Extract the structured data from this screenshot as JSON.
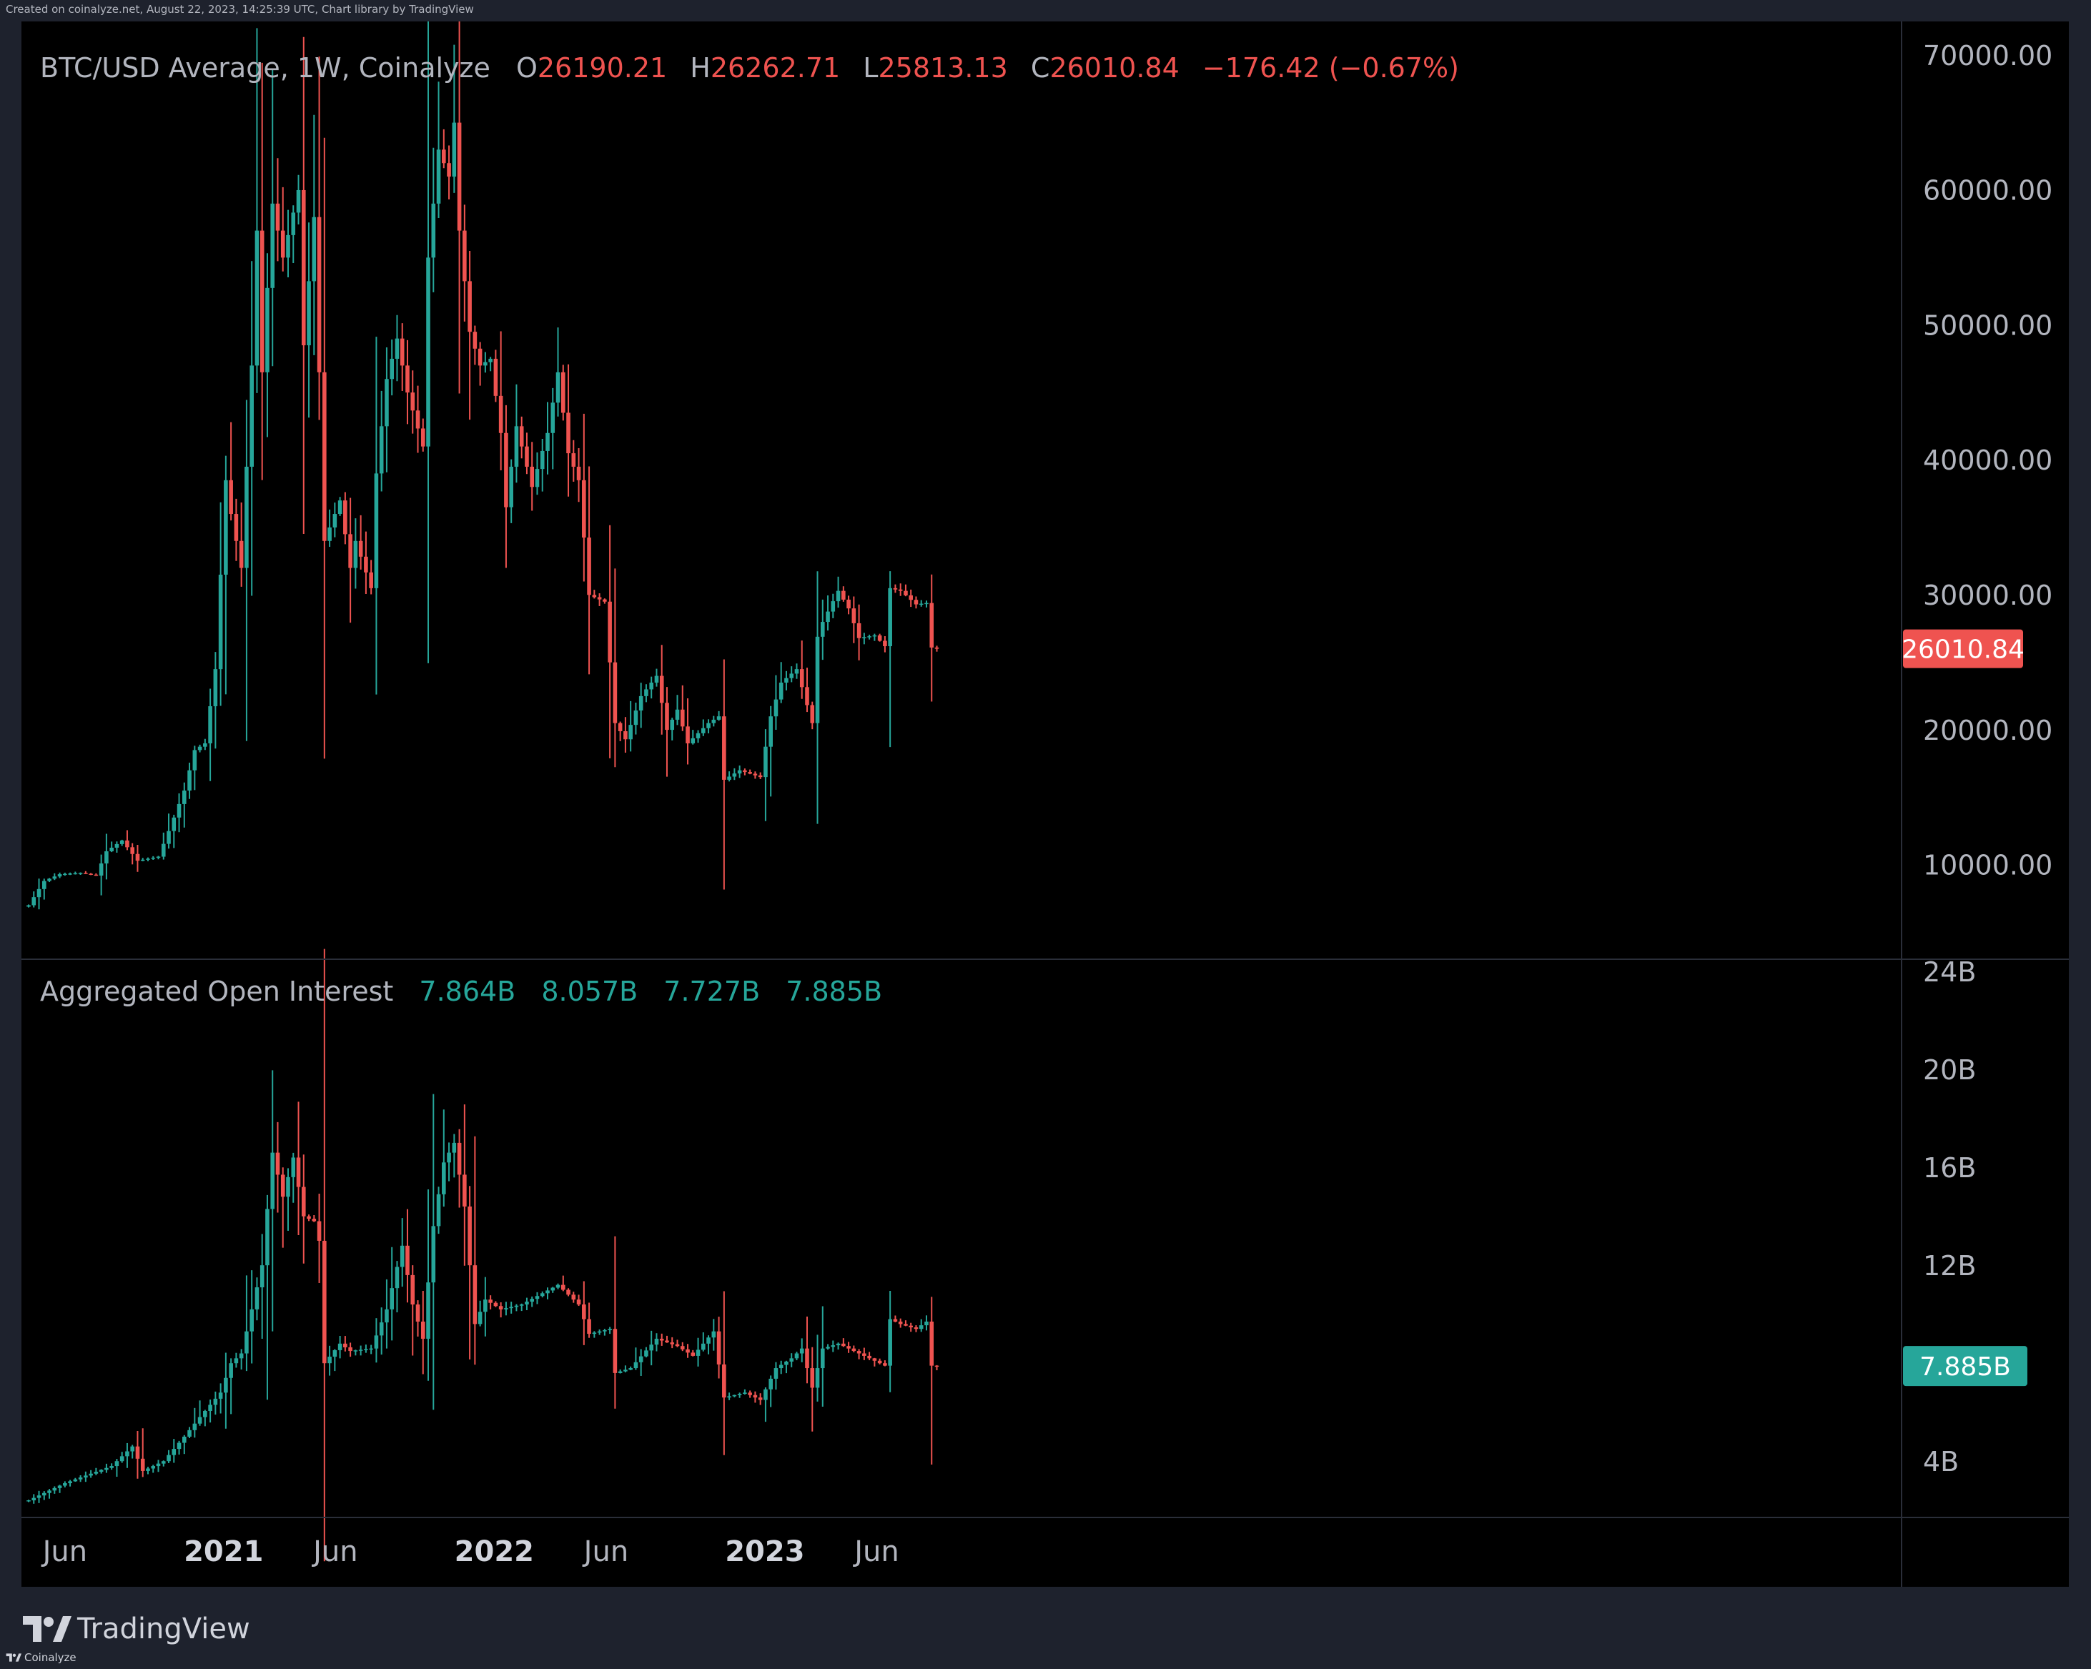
{
  "header": {
    "created_note": "Created on coinalyze.net, August 22, 2023, 14:25:39 UTC, Chart library by TradingView"
  },
  "footer": {
    "brand": "TradingView",
    "source": "Coinalyze"
  },
  "colors": {
    "background": "#000000",
    "up": "#26a69a",
    "down": "#ef5350",
    "text": "#b2b5be",
    "divider": "#2a2e39"
  },
  "chart_data": [
    {
      "type": "candlestick",
      "id": "price",
      "legend": {
        "title": "BTC/USD Average, 1W, Coinalyze",
        "open_label": "O",
        "open": "26190.21",
        "high_label": "H",
        "high": "26262.71",
        "low_label": "L",
        "low": "25813.13",
        "close_label": "C",
        "close": "26010.84",
        "change": "−176.42 (−0.67%)"
      },
      "last_value_label": "26010.84",
      "y_ticks": [
        "70000.00",
        "60000.00",
        "50000.00",
        "40000.00",
        "30000.00",
        "20000.00",
        "10000.00"
      ],
      "y_tick_values": [
        70000,
        60000,
        50000,
        40000,
        30000,
        20000,
        10000
      ],
      "ylim": [
        3000,
        72500
      ],
      "x_start_week": "2020-04-13",
      "close_anchors": [
        [
          "2020-04-13",
          7000
        ],
        [
          "2020-05-04",
          8800
        ],
        [
          "2020-05-25",
          9300
        ],
        [
          "2020-06-22",
          9400
        ],
        [
          "2020-07-13",
          9200
        ],
        [
          "2020-07-27",
          11000
        ],
        [
          "2020-08-17",
          11800
        ],
        [
          "2020-09-07",
          10300
        ],
        [
          "2020-10-05",
          10600
        ],
        [
          "2020-10-19",
          12500
        ],
        [
          "2020-11-09",
          15500
        ],
        [
          "2020-11-23",
          18500
        ],
        [
          "2020-12-07",
          19000
        ],
        [
          "2020-12-21",
          24500
        ],
        [
          "2021-01-04",
          38500
        ],
        [
          "2021-01-11",
          36000
        ],
        [
          "2021-01-25",
          32000
        ],
        [
          "2021-02-08",
          47000
        ],
        [
          "2021-02-15",
          57000
        ],
        [
          "2021-02-22",
          46500
        ],
        [
          "2021-03-08",
          59000
        ],
        [
          "2021-03-22",
          55000
        ],
        [
          "2021-04-12",
          60000
        ],
        [
          "2021-04-19",
          48500
        ],
        [
          "2021-05-03",
          58000
        ],
        [
          "2021-05-10",
          46500
        ],
        [
          "2021-05-17",
          34000
        ],
        [
          "2021-06-07",
          37000
        ],
        [
          "2021-06-21",
          32000
        ],
        [
          "2021-06-28",
          34000
        ],
        [
          "2021-07-19",
          30500
        ],
        [
          "2021-07-26",
          39000
        ],
        [
          "2021-08-09",
          46000
        ],
        [
          "2021-08-23",
          49000
        ],
        [
          "2021-09-06",
          45000
        ],
        [
          "2021-09-27",
          41000
        ],
        [
          "2021-10-04",
          55000
        ],
        [
          "2021-10-18",
          63000
        ],
        [
          "2021-11-01",
          61000
        ],
        [
          "2021-11-08",
          65000
        ],
        [
          "2021-11-15",
          57000
        ],
        [
          "2021-11-29",
          49500
        ],
        [
          "2021-12-13",
          47000
        ],
        [
          "2021-12-27",
          47500
        ],
        [
          "2022-01-10",
          42000
        ],
        [
          "2022-01-17",
          36500
        ],
        [
          "2022-01-31",
          42500
        ],
        [
          "2022-02-21",
          38000
        ],
        [
          "2022-03-14",
          42000
        ],
        [
          "2022-03-28",
          46500
        ],
        [
          "2022-04-11",
          40500
        ],
        [
          "2022-04-25",
          38500
        ],
        [
          "2022-05-09",
          30000
        ],
        [
          "2022-05-30",
          29500
        ],
        [
          "2022-06-13",
          20500
        ],
        [
          "2022-06-27",
          19300
        ],
        [
          "2022-07-18",
          22500
        ],
        [
          "2022-08-08",
          24000
        ],
        [
          "2022-08-22",
          20000
        ],
        [
          "2022-09-05",
          21500
        ],
        [
          "2022-09-19",
          19000
        ],
        [
          "2022-10-17",
          20500
        ],
        [
          "2022-10-31",
          21000
        ],
        [
          "2022-11-07",
          16300
        ],
        [
          "2022-11-28",
          17000
        ],
        [
          "2022-12-26",
          16500
        ],
        [
          "2023-01-09",
          21000
        ],
        [
          "2023-01-23",
          23500
        ],
        [
          "2023-02-13",
          24500
        ],
        [
          "2023-03-06",
          20500
        ],
        [
          "2023-03-13",
          26900
        ],
        [
          "2023-03-20",
          28000
        ],
        [
          "2023-04-10",
          30300
        ],
        [
          "2023-04-24",
          29000
        ],
        [
          "2023-05-08",
          26800
        ],
        [
          "2023-05-29",
          27000
        ],
        [
          "2023-06-12",
          26200
        ],
        [
          "2023-06-19",
          30500
        ],
        [
          "2023-07-03",
          30300
        ],
        [
          "2023-07-24",
          29300
        ],
        [
          "2023-08-07",
          29400
        ],
        [
          "2023-08-14",
          26100
        ],
        [
          "2023-08-21",
          26010
        ]
      ]
    },
    {
      "type": "candlestick",
      "id": "open_interest",
      "legend": {
        "title": "Aggregated Open Interest",
        "open": "7.864B",
        "high": "8.057B",
        "low": "7.727B",
        "close": "7.885B"
      },
      "last_value_label": "7.885B",
      "y_ticks": [
        "24B",
        "20B",
        "16B",
        "12B",
        "4B"
      ],
      "y_tick_values": [
        24,
        20,
        16,
        12,
        4
      ],
      "ylim": [
        1.7,
        24.5
      ],
      "close_anchors": [
        [
          "2020-04-13",
          2.4
        ],
        [
          "2020-06-01",
          3.1
        ],
        [
          "2020-08-03",
          3.8
        ],
        [
          "2020-08-31",
          4.6
        ],
        [
          "2020-09-14",
          3.6
        ],
        [
          "2020-10-12",
          4.0
        ],
        [
          "2020-11-09",
          5.0
        ],
        [
          "2020-11-30",
          5.8
        ],
        [
          "2020-12-28",
          6.8
        ],
        [
          "2021-01-11",
          8.0
        ],
        [
          "2021-01-25",
          8.4
        ],
        [
          "2021-02-08",
          10.2
        ],
        [
          "2021-02-22",
          12.0
        ],
        [
          "2021-03-08",
          16.6
        ],
        [
          "2021-03-22",
          14.8
        ],
        [
          "2021-04-05",
          16.4
        ],
        [
          "2021-04-19",
          14.0
        ],
        [
          "2021-05-03",
          13.8
        ],
        [
          "2021-05-10",
          13.0
        ],
        [
          "2021-05-17",
          8.0
        ],
        [
          "2021-06-07",
          8.8
        ],
        [
          "2021-06-21",
          8.5
        ],
        [
          "2021-07-19",
          8.6
        ],
        [
          "2021-08-09",
          10.2
        ],
        [
          "2021-08-30",
          12.8
        ],
        [
          "2021-09-13",
          10.4
        ],
        [
          "2021-09-27",
          9.0
        ],
        [
          "2021-10-11",
          13.6
        ],
        [
          "2021-10-25",
          16.2
        ],
        [
          "2021-11-08",
          17.0
        ],
        [
          "2021-11-22",
          14.4
        ],
        [
          "2021-12-06",
          9.6
        ],
        [
          "2021-12-20",
          10.6
        ],
        [
          "2022-01-10",
          10.2
        ],
        [
          "2022-02-07",
          10.4
        ],
        [
          "2022-03-28",
          11.2
        ],
        [
          "2022-04-25",
          10.4
        ],
        [
          "2022-05-09",
          9.2
        ],
        [
          "2022-06-06",
          9.4
        ],
        [
          "2022-06-13",
          7.6
        ],
        [
          "2022-07-04",
          7.8
        ],
        [
          "2022-08-08",
          9.0
        ],
        [
          "2022-09-05",
          8.7
        ],
        [
          "2022-09-26",
          8.3
        ],
        [
          "2022-10-24",
          9.3
        ],
        [
          "2022-11-07",
          6.6
        ],
        [
          "2022-12-05",
          6.8
        ],
        [
          "2022-12-26",
          6.5
        ],
        [
          "2023-01-16",
          7.8
        ],
        [
          "2023-02-06",
          8.2
        ],
        [
          "2023-02-20",
          8.6
        ],
        [
          "2023-03-06",
          7.0
        ],
        [
          "2023-03-20",
          8.6
        ],
        [
          "2023-04-10",
          8.8
        ],
        [
          "2023-05-08",
          8.4
        ],
        [
          "2023-06-12",
          7.9
        ],
        [
          "2023-06-19",
          9.8
        ],
        [
          "2023-07-03",
          9.6
        ],
        [
          "2023-07-24",
          9.4
        ],
        [
          "2023-08-07",
          9.7
        ],
        [
          "2023-08-14",
          7.9
        ],
        [
          "2023-08-21",
          7.885
        ]
      ]
    }
  ],
  "x_axis": {
    "labels": [
      {
        "text": "Jun",
        "date": "2020-06-01",
        "bold": false
      },
      {
        "text": "2021",
        "date": "2021-01-01",
        "bold": true
      },
      {
        "text": "Jun",
        "date": "2021-06-01",
        "bold": false
      },
      {
        "text": "2022",
        "date": "2022-01-01",
        "bold": true
      },
      {
        "text": "Jun",
        "date": "2022-06-01",
        "bold": false
      },
      {
        "text": "2023",
        "date": "2023-01-01",
        "bold": true
      },
      {
        "text": "Jun",
        "date": "2023-06-01",
        "bold": false
      }
    ]
  }
}
